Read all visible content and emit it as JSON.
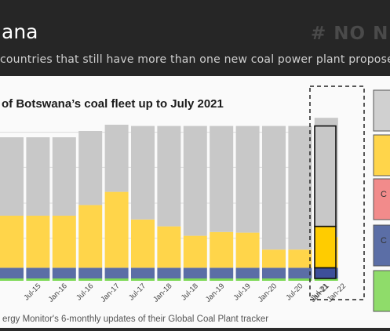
{
  "header": {
    "title": "ana",
    "hashtag": "# NO NE",
    "subtitle": "countries that still have more than one new coal power plant proposed"
  },
  "chart_data": {
    "type": "bar",
    "title": "of Botswana’s coal fleet up to July 2021",
    "categories": [
      "",
      "Jul-15",
      "Jan-16",
      "Jul-16",
      "Jan-17",
      "Jul-17",
      "Jan-18",
      "Jul-18",
      "Jan-19",
      "Jul-19",
      "Jan-20",
      "Jul-20",
      "Jan-21"
    ],
    "series": [
      {
        "color": "#5b6ea6",
        "values": [
          17,
          17,
          17,
          17,
          17,
          17,
          17,
          17,
          17,
          17,
          17,
          17,
          17
        ]
      },
      {
        "color": "#ffd54a",
        "values": [
          83,
          83,
          83,
          100,
          121,
          77,
          66,
          51,
          57,
          56,
          29,
          29,
          49
        ]
      },
      {
        "color": "#c8c8c8",
        "values": [
          125,
          125,
          125,
          118,
          107,
          149,
          160,
          175,
          169,
          170,
          197,
          197,
          190
        ]
      }
    ],
    "baseline_color": "#7ed957",
    "highlight": {
      "category": "Jul-21",
      "color": "#c8c8c8",
      "values": [
        {
          "color": "#3d4f9a",
          "value": 17
        },
        {
          "color": "#ffcc00",
          "value": 66
        },
        {
          "color": "#c8c8c8",
          "value": 160
        }
      ]
    },
    "extra_tick": "Jan-22",
    "ylim": [
      0,
      260
    ],
    "grid": true,
    "legend": [
      {
        "color": "#d0d0d0",
        "label": ""
      },
      {
        "color": "#ffd54a",
        "label": ""
      },
      {
        "color": "#f28b8b",
        "label": "C"
      },
      {
        "color": "#5b6ea6",
        "label": "C"
      },
      {
        "color": "#8fdc6a",
        "label": ""
      }
    ],
    "source": "ergy Monitor's 6-monthly updates of their Global Coal Plant tracker"
  }
}
